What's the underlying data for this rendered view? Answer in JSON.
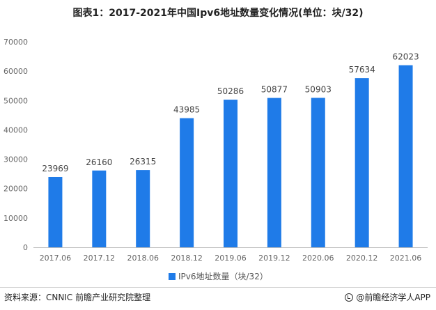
{
  "header": {
    "title": "图表1：2017-2021年中国Ipv6地址数量变化情况(单位：块/32)"
  },
  "chart_data": {
    "type": "bar",
    "title": "图表1：2017-2021年中国Ipv6地址数量变化情况(单位：块/32)",
    "categories": [
      "2017.06",
      "2017.12",
      "2018.06",
      "2018.12",
      "2019.06",
      "2019.12",
      "2020.06",
      "2020.12",
      "2021.06"
    ],
    "series": [
      {
        "name": "IPv6地址数量（块/32）",
        "values": [
          23969,
          26160,
          26315,
          43985,
          50286,
          50877,
          50903,
          57634,
          62023
        ]
      }
    ],
    "y_ticks": [
      0,
      10000,
      20000,
      30000,
      40000,
      50000,
      60000,
      70000
    ],
    "ylim": [
      0,
      70000
    ],
    "grid": false,
    "legend_position": "bottom",
    "bar_color": "#1f7be8"
  },
  "footer": {
    "source": "资料来源：CNNIC 前瞻产业研究院整理",
    "brand": "@前瞻经济学人APP",
    "brand_icon": "brand-check-icon"
  }
}
